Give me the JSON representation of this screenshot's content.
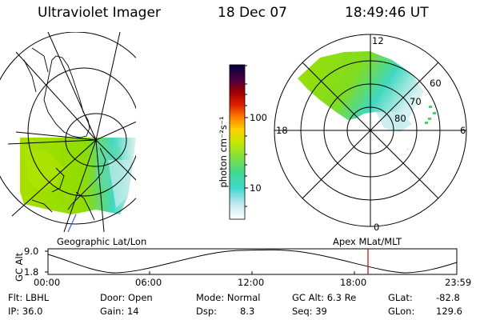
{
  "header": {
    "title": "Ultraviolet Imager",
    "date": "18 Dec 07",
    "time": "18:49:46 UT"
  },
  "colorbar": {
    "label": "photon cm⁻²s⁻¹",
    "ticks": [
      "100",
      "10"
    ]
  },
  "polar_plot": {
    "mlt_labels": [
      "12",
      "6",
      "0",
      "18"
    ],
    "lat_labels": [
      "60",
      "70",
      "80"
    ]
  },
  "captions": {
    "left": "Geographic Lat/Lon",
    "right": "Apex MLat/MLT"
  },
  "timeline": {
    "ylabel": "GC Alt",
    "yticks": [
      "9.0",
      "1.8"
    ],
    "xticks": [
      "00:00",
      "06:00",
      "12:00",
      "18:00",
      "23:59"
    ],
    "marker_time": "18:49"
  },
  "info": {
    "flt": "Flt: LBHL",
    "ip": "IP: 36.0",
    "door": "Door: Open",
    "gain": "Gain: 14",
    "mode": "Mode: Normal",
    "dsp_label": "Dsp:",
    "dsp_value": "8.3",
    "gc_alt": "GC Alt: 6.3 Re",
    "seq": "Seq: 39",
    "glat_label": "GLat:",
    "glat_value": "-82.8",
    "glon_label": "GLon:",
    "glon_value": "129.6"
  },
  "colors": {
    "grid": "#000000",
    "marker": "#cc0000",
    "aurora_low": "#a0e000",
    "aurora_mid": "#40d0c0"
  }
}
